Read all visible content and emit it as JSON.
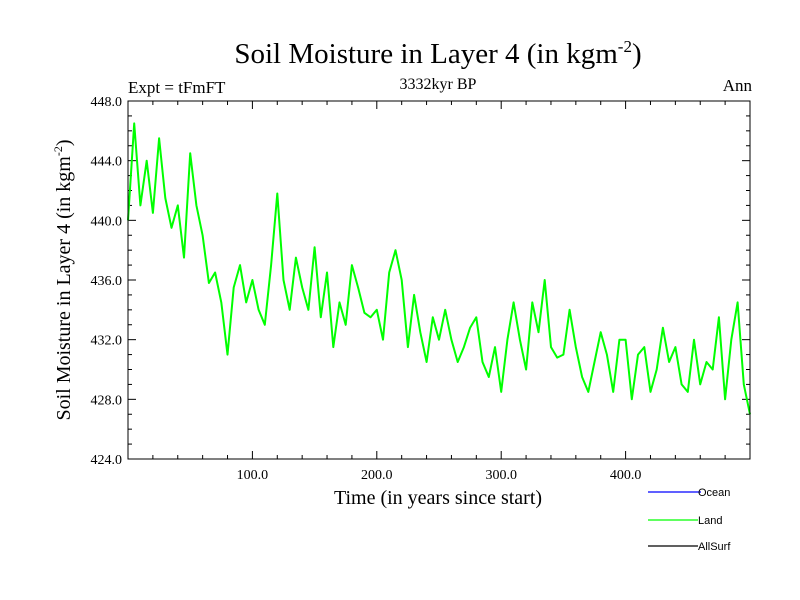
{
  "chart_data": {
    "type": "line",
    "title_main": "Soil Moisture in Layer 4 (in kgm",
    "title_sup": "-2",
    "title_close": ")",
    "subtitle": "3332kyr BP",
    "left_label": "Expt = tFmFT",
    "right_label": "Ann",
    "xlabel": "Time (in years since start)",
    "ylabel_main": "Soil Moisture in Layer 4 (in kgm",
    "ylabel_sup": "-2",
    "ylabel_close": ")",
    "xlim": [
      0,
      500
    ],
    "ylim": [
      424,
      448
    ],
    "x_ticks": [
      100,
      200,
      300,
      400
    ],
    "x_tick_labels": [
      "100.0",
      "200.0",
      "300.0",
      "400.0"
    ],
    "y_ticks": [
      424,
      428,
      432,
      436,
      440,
      444,
      448
    ],
    "y_tick_labels": [
      "424.0",
      "428.0",
      "432.0",
      "436.0",
      "440.0",
      "444.0",
      "448.0"
    ],
    "series": [
      {
        "name": "Ocean",
        "color": "#0000ff",
        "values": []
      },
      {
        "name": "Land",
        "color": "#00ff00",
        "x_start": 0,
        "x_step": 5,
        "values": [
          440.0,
          446.5,
          441.0,
          444.0,
          440.5,
          445.5,
          441.5,
          439.5,
          441.0,
          437.5,
          444.5,
          441.0,
          439.0,
          435.8,
          436.5,
          434.5,
          431.0,
          435.5,
          437.0,
          434.5,
          436.0,
          434.0,
          433.0,
          437.0,
          441.8,
          436.0,
          434.0,
          437.5,
          435.5,
          434.0,
          438.2,
          433.5,
          436.5,
          431.5,
          434.5,
          433.0,
          437.0,
          435.5,
          433.8,
          433.5,
          434.0,
          432.0,
          436.5,
          438.0,
          436.0,
          431.5,
          435.0,
          432.5,
          430.5,
          433.5,
          432.0,
          434.0,
          432.0,
          430.5,
          431.5,
          432.8,
          433.5,
          430.5,
          429.5,
          431.5,
          428.5,
          432.0,
          434.5,
          432.0,
          430.0,
          434.5,
          432.5,
          436.0,
          431.5,
          430.8,
          431.0,
          434.0,
          431.5,
          429.5,
          428.5,
          430.5,
          432.5,
          431.0,
          428.5,
          432.0,
          432.0,
          428.0,
          431.0,
          431.5,
          428.5,
          430.0,
          432.8,
          430.5,
          431.5,
          429.0,
          428.5,
          432.0,
          429.0,
          430.5,
          430.0,
          433.5,
          428.0,
          432.0,
          434.5,
          429.0,
          427.0
        ]
      },
      {
        "name": "AllSurf",
        "color": "#000000",
        "values": []
      }
    ],
    "legend": {
      "position": "bottom-right",
      "entries": [
        "Ocean",
        "Land",
        "AllSurf"
      ],
      "colors": [
        "#0000ff",
        "#00ff00",
        "#000000"
      ]
    }
  }
}
